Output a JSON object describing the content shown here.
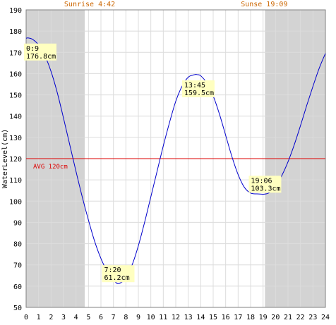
{
  "chart_data": {
    "type": "line",
    "title": "",
    "xlabel": "",
    "ylabel": "WaterLevel(cm)",
    "xlim": [
      0,
      24
    ],
    "ylim": [
      50,
      190
    ],
    "x_ticks": [
      0,
      1,
      2,
      3,
      4,
      5,
      6,
      7,
      8,
      9,
      10,
      11,
      12,
      13,
      14,
      15,
      16,
      17,
      18,
      19,
      20,
      21,
      22,
      23,
      24
    ],
    "y_ticks": [
      50,
      60,
      70,
      80,
      90,
      100,
      110,
      120,
      130,
      140,
      150,
      160,
      170,
      180,
      190
    ],
    "grid": true,
    "sunrise": {
      "hour": 4.7,
      "label": "Sunrise 4:42"
    },
    "sunset": {
      "hour": 19.15,
      "label": "Sunse 19:09"
    },
    "average": {
      "value": 120,
      "label": "AVG 120cm"
    },
    "series": [
      {
        "x": [
          0,
          0.15,
          0.5,
          1,
          1.5,
          2,
          2.5,
          3,
          3.5,
          4,
          4.5,
          5,
          5.5,
          6,
          6.5,
          7,
          7.33,
          7.7,
          8,
          8.5,
          9,
          9.5,
          10,
          10.5,
          11,
          11.5,
          12,
          12.5,
          13,
          13.5,
          13.75,
          14,
          14.5,
          15,
          15.5,
          16,
          16.5,
          17,
          17.5,
          18,
          18.5,
          19.1,
          19.5,
          20,
          20.5,
          21,
          21.5,
          22,
          22.5,
          23,
          23.5,
          24
        ],
        "y": [
          176.6,
          176.8,
          176.2,
          173.5,
          168.5,
          161,
          151,
          139,
          126.5,
          114,
          102,
          91,
          81,
          73,
          67,
          63,
          61.2,
          62,
          64,
          70,
          79,
          90,
          102,
          114,
          126,
          137,
          147,
          154,
          158.3,
          159.5,
          159.5,
          159,
          155.5,
          149.5,
          141,
          131,
          121,
          112.5,
          106.5,
          103.8,
          103.4,
          103.3,
          104,
          107,
          112,
          118.5,
          126.5,
          135.5,
          145,
          154,
          162.5,
          169.5
        ]
      }
    ],
    "annotations": [
      {
        "time": "0:9",
        "value": "176.8cm",
        "x": 0.15,
        "y": 176.8
      },
      {
        "time": "7:20",
        "value": "61.2cm",
        "x": 7.33,
        "y": 61.2
      },
      {
        "time": "13:45",
        "value": "159.5cm",
        "x": 13.75,
        "y": 159.5
      },
      {
        "time": "19:06",
        "value": "103.3cm",
        "x": 19.1,
        "y": 103.3
      }
    ],
    "colors": {
      "line": "#0000cc",
      "average": "#dd0000",
      "night": "#d3d3d3",
      "grid": "#dcdcdc",
      "sun_label": "#cc6600",
      "note_bg": "#ffffc0"
    }
  }
}
